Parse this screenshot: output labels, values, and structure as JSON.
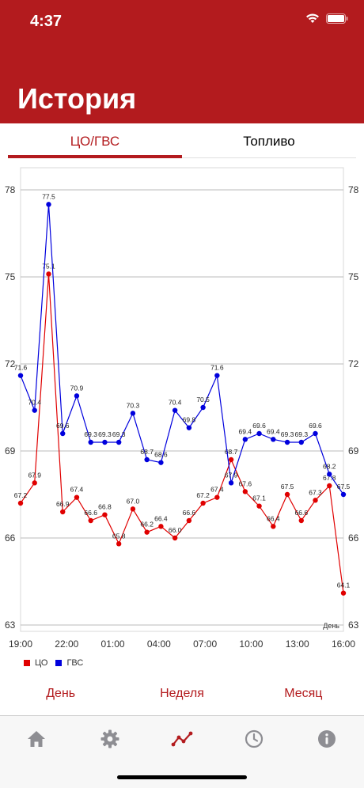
{
  "status": {
    "time": "4:37"
  },
  "header": {
    "title": "История"
  },
  "tabs": [
    {
      "label": "ЦО/ГВС",
      "active": true
    },
    {
      "label": "Топливо",
      "active": false
    }
  ],
  "colors": {
    "brand": "#b31b1e",
    "co": "#e00000",
    "gvs": "#0000dd"
  },
  "chart_data": {
    "type": "line",
    "xlabel": "День",
    "x_ticks": [
      "19:00",
      "22:00",
      "01:00",
      "04:00",
      "07:00",
      "10:00",
      "13:00",
      "16:00"
    ],
    "y_ticks": [
      63,
      66,
      69,
      72,
      75,
      78
    ],
    "ylim": [
      63,
      78
    ],
    "grid": true,
    "series": [
      {
        "name": "ЦО",
        "color": "#e00000",
        "values": [
          67.2,
          67.9,
          75.1,
          66.9,
          67.4,
          66.6,
          66.8,
          65.8,
          67.0,
          66.2,
          66.4,
          66.0,
          66.6,
          67.2,
          67.4,
          68.7,
          67.6,
          67.1,
          66.4,
          67.5,
          66.6,
          67.3,
          67.8,
          64.1
        ]
      },
      {
        "name": "ГВС",
        "color": "#0000dd",
        "values": [
          71.6,
          70.4,
          77.5,
          69.6,
          70.9,
          69.3,
          69.3,
          69.3,
          70.3,
          68.7,
          68.6,
          70.4,
          69.8,
          70.5,
          71.6,
          67.9,
          69.4,
          69.6,
          69.4,
          69.3,
          69.3,
          69.6,
          68.2,
          67.5
        ]
      }
    ]
  },
  "range_buttons": [
    "День",
    "Неделя",
    "Месяц"
  ],
  "tabbar": {
    "items": [
      "home-icon",
      "gear-icon",
      "chart-icon",
      "clock-icon",
      "info-icon"
    ],
    "active": "chart-icon"
  }
}
